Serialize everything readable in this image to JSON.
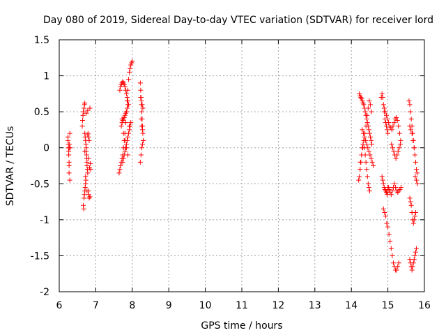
{
  "chart_data": {
    "type": "scatter",
    "title": "Day 080 of 2019, Sidereal Day-to-day VTEC variation (SDTVAR) for receiver lord",
    "xlabel": "GPS time / hours",
    "ylabel": "SDTVAR / TECUs",
    "xlim": [
      6,
      16
    ],
    "ylim": [
      -2,
      1.5
    ],
    "xticks": [
      6,
      7,
      8,
      9,
      10,
      11,
      12,
      13,
      14,
      15,
      16
    ],
    "xtick_labels": [
      "6",
      "7",
      "8",
      "9",
      "10",
      "11",
      "12",
      "13",
      "14",
      "15",
      "16"
    ],
    "yticks": [
      -2,
      -1.5,
      -1,
      -0.5,
      0,
      0.5,
      1,
      1.5
    ],
    "ytick_labels": [
      "-2",
      "-1.5",
      "-1",
      "-0.5",
      "0",
      "0.5",
      "1",
      "1.5"
    ],
    "grid": true,
    "marker": "+",
    "marker_color": "#ff0000",
    "series": [
      {
        "name": "SDTVAR",
        "x": [
          6.24,
          6.24,
          6.25,
          6.25,
          6.26,
          6.26,
          6.27,
          6.27,
          6.27,
          6.28,
          6.28,
          6.29,
          6.29,
          6.3,
          6.63,
          6.64,
          6.65,
          6.66,
          6.66,
          6.67,
          6.68,
          6.68,
          6.69,
          6.69,
          6.7,
          6.7,
          6.7,
          6.71,
          6.71,
          6.72,
          6.72,
          6.73,
          6.73,
          6.74,
          6.74,
          6.75,
          6.75,
          6.76,
          6.76,
          6.77,
          6.78,
          6.78,
          6.79,
          6.8,
          6.8,
          6.81,
          6.82,
          6.82,
          6.83,
          6.84,
          6.84,
          6.85,
          6.86,
          6.7,
          6.72,
          6.74,
          6.76,
          6.78,
          6.8,
          7.64,
          7.66,
          7.68,
          7.7,
          7.72,
          7.74,
          7.76,
          7.78,
          7.8,
          7.82,
          7.84,
          7.86,
          7.88,
          7.9,
          7.92,
          7.94,
          7.96,
          7.98,
          8.0,
          7.66,
          7.68,
          7.7,
          7.72,
          7.74,
          7.76,
          7.78,
          7.8,
          7.82,
          7.84,
          7.86,
          7.88,
          7.9,
          7.7,
          7.72,
          7.74,
          7.76,
          7.78,
          7.8,
          7.82,
          7.84,
          7.86,
          7.88,
          7.74,
          7.76,
          7.78,
          7.8,
          7.82,
          7.84,
          7.86,
          7.88,
          7.9,
          7.92,
          7.94,
          7.96,
          7.72,
          7.76,
          7.8,
          7.84,
          7.88,
          7.92,
          8.22,
          8.23,
          8.24,
          8.25,
          8.26,
          8.27,
          8.28,
          8.29,
          8.3,
          8.22,
          8.24,
          8.26,
          8.28,
          8.3,
          8.23,
          8.25,
          8.27,
          8.29,
          8.24,
          8.26,
          8.28,
          14.2,
          14.22,
          14.24,
          14.26,
          14.28,
          14.3,
          14.32,
          14.34,
          14.36,
          14.38,
          14.4,
          14.42,
          14.44,
          14.46,
          14.48,
          14.5,
          14.22,
          14.24,
          14.26,
          14.28,
          14.3,
          14.32,
          14.34,
          14.36,
          14.38,
          14.4,
          14.42,
          14.44,
          14.46,
          14.48,
          14.5,
          14.52,
          14.54,
          14.56,
          14.3,
          14.33,
          14.36,
          14.39,
          14.42,
          14.45,
          14.48,
          14.51,
          14.54,
          14.57,
          14.6,
          14.25,
          14.28,
          14.31,
          14.34,
          14.37,
          14.4,
          14.43,
          14.46,
          14.49,
          14.52,
          14.55,
          14.82,
          14.84,
          14.86,
          14.88,
          14.9,
          14.92,
          14.94,
          14.96,
          14.98,
          15.0,
          14.84,
          14.86,
          14.88,
          14.9,
          14.92,
          14.94,
          14.96,
          14.98,
          15.0,
          15.02,
          14.88,
          14.91,
          14.94,
          14.97,
          15.0,
          15.03,
          15.06,
          15.09,
          15.12,
          15.15,
          15.18,
          15.21,
          15.24,
          15.27,
          15.3,
          14.9,
          14.93,
          14.96,
          14.99,
          15.02,
          15.05,
          15.08,
          15.11,
          15.14,
          15.17,
          15.2,
          15.23,
          15.26,
          15.29,
          15.32,
          15.35,
          15.0,
          15.03,
          15.06,
          15.09,
          15.12,
          15.15,
          15.18,
          15.21,
          15.24,
          15.27,
          15.3,
          15.33,
          15.36,
          15.1,
          15.13,
          15.16,
          15.19,
          15.22,
          15.25,
          15.28,
          15.31,
          15.34,
          15.58,
          15.6,
          15.62,
          15.64,
          15.66,
          15.68,
          15.7,
          15.72,
          15.74,
          15.76,
          15.78,
          15.8,
          15.6,
          15.62,
          15.64,
          15.66,
          15.68,
          15.7,
          15.72,
          15.74,
          15.76,
          15.6,
          15.62,
          15.64,
          15.66,
          15.68,
          15.7,
          15.72,
          15.74,
          15.76,
          15.78,
          15.6,
          15.63,
          15.66,
          15.69,
          15.72,
          15.75,
          15.78,
          15.81
        ],
        "y": [
          0.15,
          0.1,
          0.05,
          0.0,
          -0.05,
          -0.1,
          -0.2,
          -0.25,
          -0.35,
          0.05,
          0.0,
          -0.45,
          0.2,
          0.0,
          0.3,
          0.38,
          0.45,
          0.5,
          -0.8,
          -0.85,
          0.55,
          -0.7,
          0.6,
          -0.65,
          -0.6,
          0.62,
          0.2,
          -0.55,
          0.15,
          -0.5,
          0.1,
          -0.45,
          0.05,
          0.0,
          -0.05,
          -0.1,
          -0.15,
          -0.2,
          -0.25,
          -0.3,
          0.18,
          -0.35,
          0.2,
          0.15,
          -0.6,
          -0.65,
          -0.7,
          0.1,
          -0.28,
          -0.68,
          0.55,
          -0.22,
          -0.3,
          -0.05,
          -0.4,
          0.48,
          -0.6,
          0.52,
          -0.15,
          -0.35,
          -0.3,
          -0.25,
          -0.2,
          -0.15,
          -0.1,
          0.0,
          0.1,
          0.2,
          0.35,
          0.5,
          0.65,
          0.8,
          0.95,
          1.05,
          1.1,
          1.15,
          1.18,
          1.2,
          0.8,
          0.85,
          0.88,
          0.9,
          0.92,
          0.9,
          0.88,
          0.85,
          0.8,
          0.75,
          0.7,
          0.65,
          0.6,
          0.3,
          0.35,
          0.38,
          0.4,
          0.42,
          0.45,
          0.48,
          0.5,
          0.55,
          0.6,
          -0.2,
          -0.15,
          -0.1,
          -0.05,
          0.0,
          0.05,
          0.1,
          0.15,
          0.2,
          0.25,
          0.3,
          0.35,
          0.4,
          0.2,
          0.1,
          0.0,
          -0.1,
          0.3,
          0.9,
          0.8,
          0.7,
          0.6,
          0.5,
          0.4,
          0.3,
          0.2,
          0.1,
          -0.2,
          -0.1,
          0.0,
          0.05,
          0.1,
          0.7,
          0.65,
          0.6,
          0.55,
          0.4,
          0.3,
          0.25,
          -0.45,
          -0.4,
          -0.3,
          -0.2,
          -0.1,
          0.0,
          0.05,
          0.1,
          0.0,
          -0.1,
          -0.2,
          -0.3,
          -0.4,
          -0.5,
          -0.55,
          -0.6,
          0.75,
          0.72,
          0.7,
          0.68,
          0.65,
          0.62,
          0.6,
          0.55,
          0.5,
          0.45,
          0.4,
          0.35,
          0.3,
          0.25,
          0.2,
          0.15,
          0.1,
          0.05,
          0.25,
          0.2,
          0.15,
          0.1,
          0.05,
          0.0,
          -0.05,
          -0.1,
          -0.15,
          -0.2,
          -0.25,
          -0.2,
          -0.1,
          0.0,
          0.1,
          0.2,
          0.3,
          0.45,
          0.55,
          0.65,
          0.6,
          0.5,
          0.7,
          0.75,
          0.7,
          0.6,
          0.5,
          0.4,
          0.35,
          0.3,
          0.25,
          0.2,
          -0.4,
          -0.45,
          -0.5,
          -0.55,
          -0.58,
          -0.6,
          -0.62,
          -0.65,
          -0.6,
          -0.55,
          -0.85,
          -0.9,
          -0.95,
          -1.05,
          -1.1,
          -1.2,
          -1.3,
          -1.4,
          -1.5,
          -1.6,
          -1.65,
          -1.7,
          -1.7,
          -1.65,
          -1.6,
          0.55,
          0.5,
          0.45,
          0.4,
          0.35,
          0.3,
          0.28,
          0.25,
          0.3,
          0.35,
          0.4,
          0.42,
          0.38,
          0.3,
          0.2,
          0.1,
          -0.55,
          -0.58,
          -0.62,
          -0.65,
          -0.6,
          -0.55,
          -0.5,
          -0.55,
          -0.6,
          -0.62,
          -0.6,
          -0.58,
          -0.55,
          0.05,
          0.0,
          -0.05,
          -0.1,
          -0.15,
          -0.1,
          -0.05,
          0.0,
          0.05,
          0.65,
          0.6,
          0.5,
          0.4,
          0.3,
          0.2,
          0.1,
          0.0,
          -0.1,
          -0.2,
          -0.3,
          -0.35,
          -0.7,
          -0.75,
          -0.8,
          -0.9,
          -1.0,
          -1.05,
          -1.0,
          -0.95,
          -0.9,
          -1.55,
          -1.6,
          -1.65,
          -1.7,
          -1.65,
          -1.6,
          -1.55,
          -1.5,
          -1.45,
          -1.4,
          0.3,
          0.25,
          0.2,
          0.1,
          0.0,
          -0.4,
          -0.45,
          -0.5
        ]
      }
    ]
  }
}
